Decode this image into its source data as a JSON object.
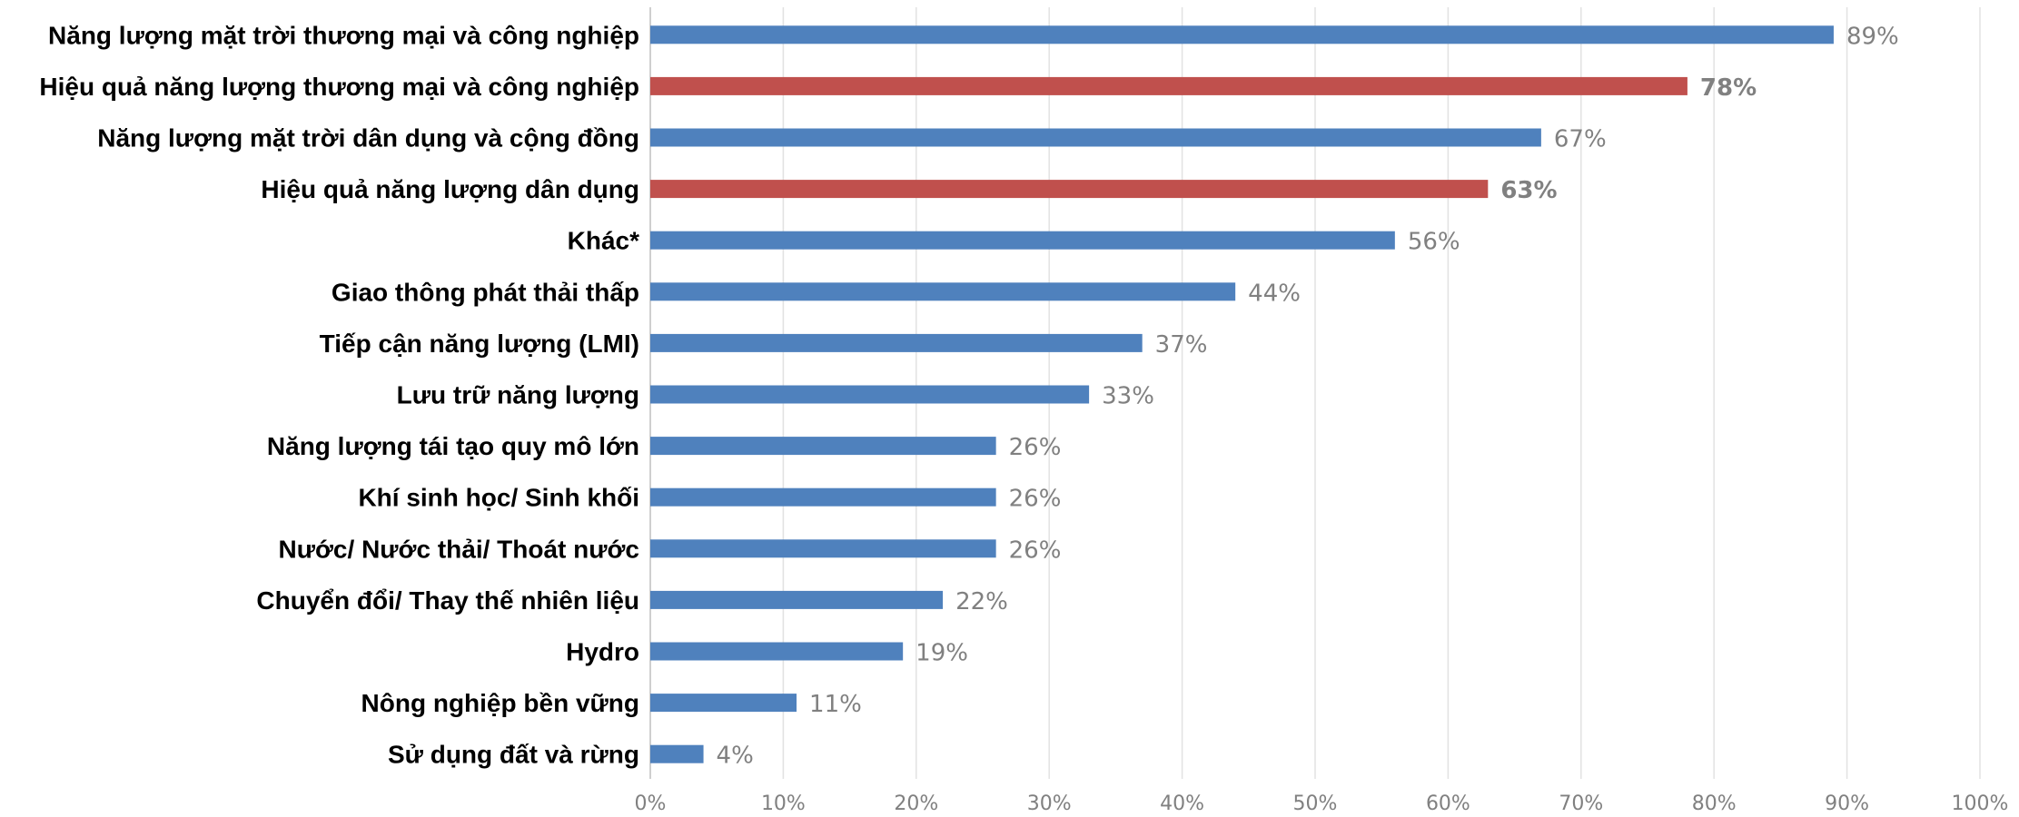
{
  "chart_data": {
    "type": "bar",
    "orientation": "horizontal",
    "categories": [
      "Năng lượng mặt trời thương mại và công nghiệp",
      "Hiệu quả năng lượng thương mại và công nghiệp",
      "Năng lượng mặt trời dân dụng và cộng đồng",
      "Hiệu quả năng lượng dân dụng",
      "Khác*",
      "Giao thông phát thải thấp",
      "Tiếp cận năng lượng (LMI)",
      "Lưu trữ năng lượng",
      "Năng lượng tái tạo quy mô lớn",
      "Khí sinh học/ Sinh khối",
      "Nước/ Nước thải/ Thoát nước",
      "Chuyển đổi/ Thay thế nhiên liệu",
      "Hydro",
      "Nông nghiệp bền vững",
      "Sử dụng đất và rừng"
    ],
    "values": [
      89,
      78,
      67,
      63,
      56,
      44,
      37,
      33,
      26,
      26,
      26,
      22,
      19,
      11,
      4
    ],
    "value_labels": [
      "89%",
      "78%",
      "67%",
      "63%",
      "56%",
      "44%",
      "37%",
      "33%",
      "26%",
      "26%",
      "26%",
      "22%",
      "19%",
      "11%",
      "4%"
    ],
    "highlighted": [
      false,
      true,
      false,
      true,
      false,
      false,
      false,
      false,
      false,
      false,
      false,
      false,
      false,
      false,
      false
    ],
    "x_ticks": [
      0,
      10,
      20,
      30,
      40,
      50,
      60,
      70,
      80,
      90,
      100
    ],
    "x_tick_labels": [
      "0%",
      "10%",
      "20%",
      "30%",
      "40%",
      "50%",
      "60%",
      "70%",
      "80%",
      "90%",
      "100%"
    ],
    "xlim": [
      0,
      100
    ],
    "grid": true,
    "legend": "none",
    "colors": {
      "default": "#4f81bd",
      "highlight": "#c0504d"
    }
  }
}
